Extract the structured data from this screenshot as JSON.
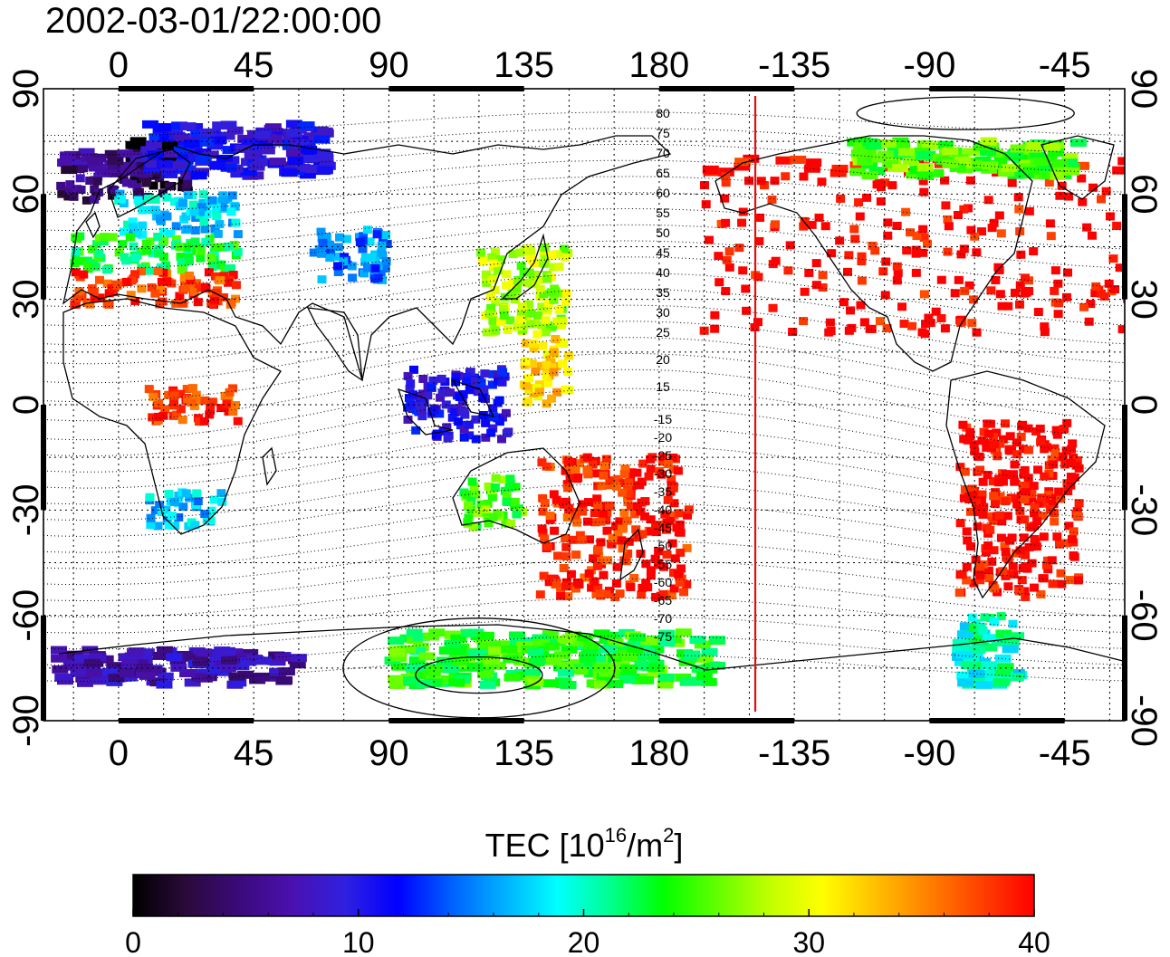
{
  "title": "2002-03-01/22:00:00",
  "map": {
    "lon_ticks_top": [
      "0",
      "45",
      "90",
      "135",
      "180",
      "-135",
      "-90",
      "-45"
    ],
    "lon_ticks_bottom": [
      "0",
      "45",
      "90",
      "135",
      "180",
      "-135",
      "-90",
      "-45"
    ],
    "lat_ticks_left": [
      "90",
      "60",
      "30",
      "0",
      "-30",
      "-60",
      "-90"
    ],
    "lat_ticks_right": [
      "90",
      "60",
      "30",
      "0",
      "-30",
      "-60",
      "-90"
    ],
    "lon_range": [
      -25,
      335
    ],
    "lat_range": [
      -90,
      90
    ],
    "grid": true,
    "terminator_line_lon": -148,
    "terminator_color": "#e01010",
    "contour_labels_north": [
      "80",
      "75",
      "70",
      "65",
      "60",
      "55",
      "50",
      "45",
      "40",
      "35",
      "30",
      "25",
      "20",
      "15"
    ],
    "contour_labels_south": [
      "-15",
      "-20",
      "-25",
      "-30",
      "-35",
      "-40",
      "-45",
      "-50",
      "-55",
      "-60",
      "-65",
      "-70",
      "-75"
    ]
  },
  "colorbar": {
    "label_main": "TEC  [10",
    "label_exp1": "16",
    "label_mid": "/m",
    "label_exp2": "2",
    "label_end": "]",
    "ticks": [
      "0",
      "10",
      "20",
      "30",
      "40"
    ],
    "range": [
      0,
      40
    ],
    "colors": [
      "#000000",
      "#2a0a3a",
      "#3a0a7a",
      "#4a10b0",
      "#3020e0",
      "#0000ff",
      "#0060ff",
      "#00b0ff",
      "#00ffff",
      "#00ff90",
      "#00ff00",
      "#60ff00",
      "#c0ff00",
      "#ffff00",
      "#ffc000",
      "#ff8000",
      "#ff4000",
      "#ff0000"
    ]
  },
  "chart_data": {
    "type": "heatmap",
    "title": "2002-03-01/22:00:00",
    "xlabel": "",
    "ylabel": "",
    "value_label": "TEC [10^16/m^2]",
    "xlim": [
      -25,
      335
    ],
    "ylim": [
      -90,
      90
    ],
    "clim": [
      0,
      40
    ],
    "regions": [
      {
        "lon": [
          5,
          25
        ],
        "lat": [
          60,
          75
        ],
        "tec": 1
      },
      {
        "lon": [
          -20,
          10
        ],
        "lat": [
          58,
          72
        ],
        "tec": 5
      },
      {
        "lon": [
          0,
          40
        ],
        "lat": [
          48,
          60
        ],
        "tec": 18
      },
      {
        "lon": [
          -15,
          40
        ],
        "lat": [
          38,
          48
        ],
        "tec": 23
      },
      {
        "lon": [
          -15,
          40
        ],
        "lat": [
          28,
          38
        ],
        "tec": 38
      },
      {
        "lon": [
          10,
          70
        ],
        "lat": [
          65,
          80
        ],
        "tec": 10
      },
      {
        "lon": [
          65,
          90
        ],
        "lat": [
          35,
          50
        ],
        "tec": 15
      },
      {
        "lon": [
          120,
          150
        ],
        "lat": [
          20,
          45
        ],
        "tec": 28
      },
      {
        "lon": [
          135,
          150
        ],
        "lat": [
          0,
          20
        ],
        "tec": 32
      },
      {
        "lon": [
          95,
          130
        ],
        "lat": [
          -10,
          10
        ],
        "tec": 10
      },
      {
        "lon": [
          10,
          40
        ],
        "lat": [
          -5,
          5
        ],
        "tec": 38
      },
      {
        "lon": [
          10,
          35
        ],
        "lat": [
          -35,
          -25
        ],
        "tec": 17
      },
      {
        "lon": [
          115,
          135
        ],
        "lat": [
          -35,
          -20
        ],
        "tec": 25
      },
      {
        "lon": [
          140,
          190
        ],
        "lat": [
          -55,
          -15
        ],
        "tec": 39
      },
      {
        "lon": [
          195,
          340
        ],
        "lat": [
          20,
          70
        ],
        "tec": 40
      },
      {
        "lon": [
          280,
          320
        ],
        "lat": [
          -55,
          -5
        ],
        "tec": 40
      },
      {
        "lon": [
          280,
          300
        ],
        "lat": [
          -80,
          -60
        ],
        "tec": 20
      },
      {
        "lon": [
          -20,
          60
        ],
        "lat": [
          -80,
          -70
        ],
        "tec": 7
      },
      {
        "lon": [
          90,
          200
        ],
        "lat": [
          -80,
          -65
        ],
        "tec": 24
      },
      {
        "lon": [
          245,
          320
        ],
        "lat": [
          65,
          75
        ],
        "tec": 25
      }
    ]
  }
}
